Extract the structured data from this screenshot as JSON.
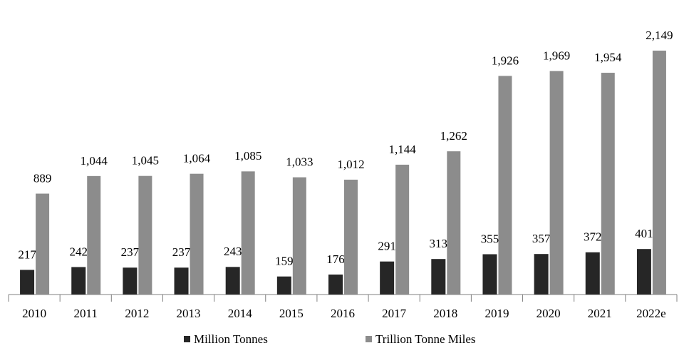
{
  "chart_data": {
    "type": "bar",
    "categories": [
      "2010",
      "2011",
      "2012",
      "2013",
      "2014",
      "2015",
      "2016",
      "2017",
      "2018",
      "2019",
      "2020",
      "2021",
      "2022e"
    ],
    "series": [
      {
        "name": "Million Tonnes",
        "color": "#262626",
        "values": [
          217,
          242,
          237,
          237,
          243,
          159,
          176,
          291,
          313,
          355,
          357,
          372,
          401
        ]
      },
      {
        "name": "Trillion Tonne Miles",
        "color": "#8c8c8c",
        "values": [
          889,
          1044,
          1045,
          1064,
          1085,
          1033,
          1012,
          1144,
          1262,
          1926,
          1969,
          1954,
          2149
        ],
        "value_labels": [
          "889",
          "1,044",
          "1,045",
          "1,064",
          "1,085",
          "1,033",
          "1,012",
          "1,144",
          "1,262",
          "1,926",
          "1,969",
          "1,954",
          "2,149"
        ]
      }
    ],
    "legend": "bottom"
  }
}
